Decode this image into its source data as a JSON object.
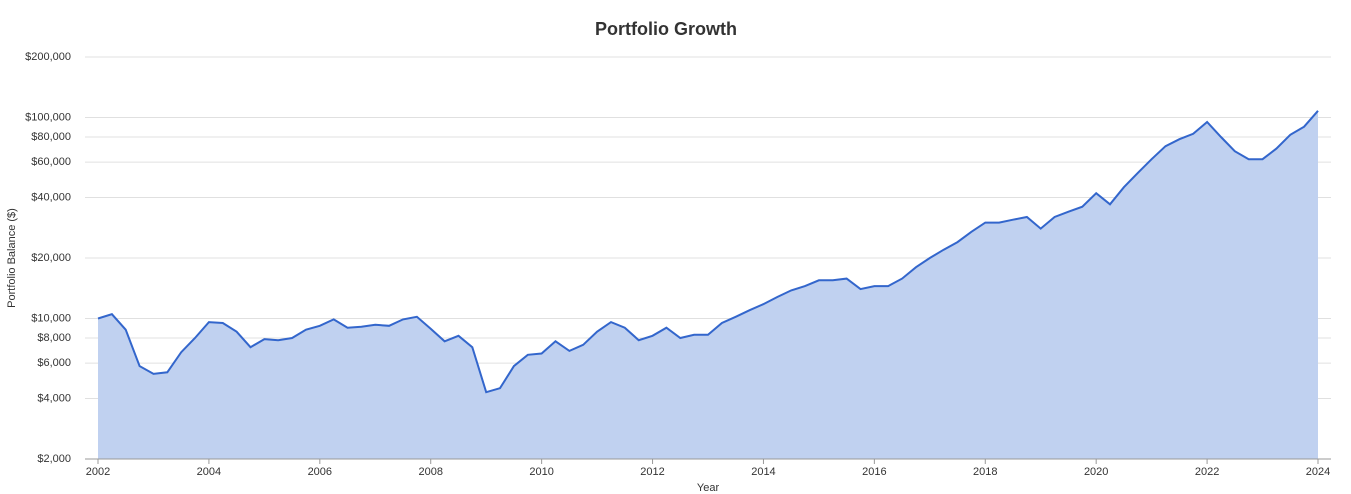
{
  "chart_data": {
    "type": "area",
    "title": "Portfolio Growth",
    "ylabel": "Portfolio Balance ($)",
    "xlabel": "Year",
    "log_scale": true,
    "grid": true,
    "color": "#3366cc",
    "fill": "#c0d1f0",
    "xlim": [
      2002,
      2024
    ],
    "xticks": [
      2002,
      2004,
      2006,
      2008,
      2010,
      2012,
      2014,
      2016,
      2018,
      2020,
      2022,
      2024
    ],
    "ylim": [
      2000,
      200000
    ],
    "yticks": [
      {
        "value": 2000,
        "label": "$2,000"
      },
      {
        "value": 4000,
        "label": "$4,000"
      },
      {
        "value": 6000,
        "label": "$6,000"
      },
      {
        "value": 8000,
        "label": "$8,000"
      },
      {
        "value": 10000,
        "label": "$10,000"
      },
      {
        "value": 20000,
        "label": "$20,000"
      },
      {
        "value": 40000,
        "label": "$40,000"
      },
      {
        "value": 60000,
        "label": "$60,000"
      },
      {
        "value": 80000,
        "label": "$80,000"
      },
      {
        "value": 100000,
        "label": "$100,000"
      },
      {
        "value": 200000,
        "label": "$200,000"
      }
    ],
    "x": [
      2002,
      2002.25,
      2002.5,
      2002.75,
      2003,
      2003.25,
      2003.5,
      2003.75,
      2004,
      2004.25,
      2004.5,
      2004.75,
      2005,
      2005.25,
      2005.5,
      2005.75,
      2006,
      2006.25,
      2006.5,
      2006.75,
      2007,
      2007.25,
      2007.5,
      2007.75,
      2008,
      2008.25,
      2008.5,
      2008.75,
      2009,
      2009.25,
      2009.5,
      2009.75,
      2010,
      2010.25,
      2010.5,
      2010.75,
      2011,
      2011.25,
      2011.5,
      2011.75,
      2012,
      2012.25,
      2012.5,
      2012.75,
      2013,
      2013.25,
      2013.5,
      2013.75,
      2014,
      2014.25,
      2014.5,
      2014.75,
      2015,
      2015.25,
      2015.5,
      2015.75,
      2016,
      2016.25,
      2016.5,
      2016.75,
      2017,
      2017.25,
      2017.5,
      2017.75,
      2018,
      2018.25,
      2018.5,
      2018.75,
      2019,
      2019.25,
      2019.5,
      2019.75,
      2020,
      2020.25,
      2020.5,
      2020.75,
      2021,
      2021.25,
      2021.5,
      2021.75,
      2022,
      2022.25,
      2022.5,
      2022.75,
      2023,
      2023.25,
      2023.5,
      2023.75,
      2024
    ],
    "values": [
      10000,
      10500,
      8800,
      5800,
      5300,
      5400,
      6800,
      8000,
      9600,
      9500,
      8600,
      7200,
      7900,
      7800,
      8000,
      8800,
      9200,
      9900,
      9000,
      9100,
      9300,
      9200,
      9900,
      10200,
      8900,
      7700,
      8200,
      7200,
      4300,
      4500,
      5800,
      6600,
      6700,
      7700,
      6900,
      7400,
      8600,
      9600,
      9000,
      7800,
      8200,
      9000,
      8000,
      8300,
      8300,
      9500,
      10200,
      11000,
      11800,
      12800,
      13800,
      14500,
      15500,
      15500,
      15800,
      14000,
      14500,
      14500,
      15800,
      18000,
      20000,
      22000,
      24000,
      27000,
      30000,
      30000,
      31000,
      32000,
      28000,
      32000,
      34000,
      36000,
      42000,
      37000,
      45000,
      53000,
      62000,
      72000,
      78000,
      83000,
      95000,
      80000,
      68000,
      62000,
      62000,
      70000,
      82000,
      90000,
      108000
    ]
  }
}
